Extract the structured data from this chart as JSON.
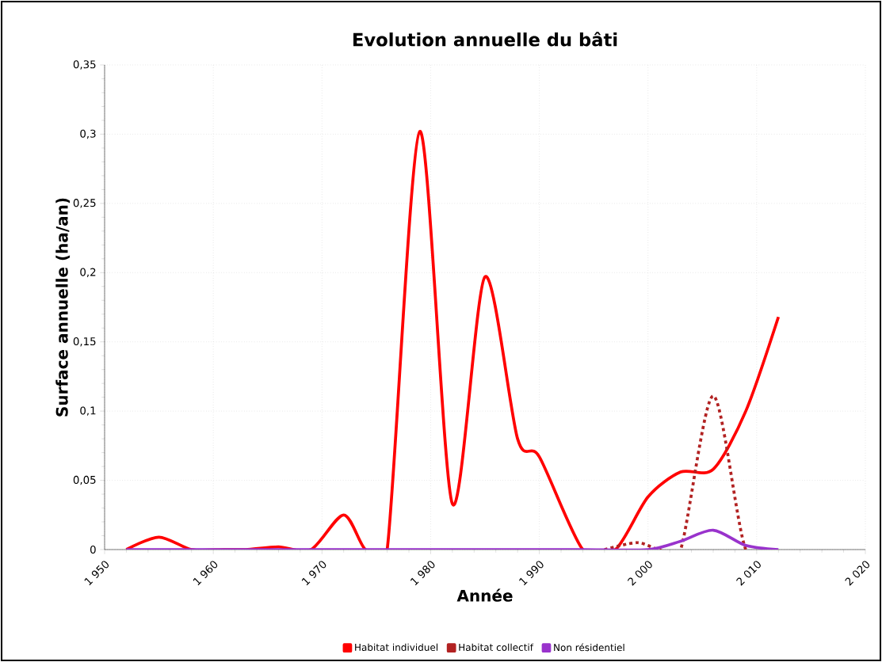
{
  "chart_data": {
    "type": "line",
    "title": "Evolution annuelle du bâti",
    "xlabel": "Année",
    "ylabel": "Surface annuelle (ha/an)",
    "xlim": [
      1950,
      2020
    ],
    "xticks": [
      {
        "value": 1950,
        "label": "1 950"
      },
      {
        "value": 1960,
        "label": "1 960"
      },
      {
        "value": 1970,
        "label": "1 970"
      },
      {
        "value": 1980,
        "label": "1 980"
      },
      {
        "value": 1990,
        "label": "1 990"
      },
      {
        "value": 2000,
        "label": "2 000"
      },
      {
        "value": 2010,
        "label": "2 010"
      },
      {
        "value": 2020,
        "label": "2 020"
      }
    ],
    "ylim": [
      0,
      0.35
    ],
    "yticks": [
      0,
      {
        "value": 0.05,
        "label": "0,05"
      },
      {
        "value": 0.1,
        "label": "0,1"
      },
      {
        "value": 0.15,
        "label": "0,15"
      },
      {
        "value": 0.2,
        "label": "0,2"
      },
      {
        "value": 0.25,
        "label": "0,25"
      },
      {
        "value": 0.3,
        "label": "0,3"
      },
      {
        "value": 0.35,
        "label": "0,35"
      }
    ],
    "grid": true,
    "legend": "bottom",
    "series": [
      {
        "name": "Habitat individuel",
        "color": "#ff0000",
        "line_style": "solid",
        "x": [
          1952,
          1955,
          1958,
          1961,
          1963,
          1966,
          1969,
          1972,
          1974,
          1976,
          1979,
          1982,
          1985,
          1988,
          1990,
          1994,
          1997,
          2000,
          2003,
          2006,
          2009,
          2012
        ],
        "values": [
          0,
          0.009,
          0,
          0,
          0,
          0.002,
          0,
          0.025,
          0,
          0,
          0.302,
          0.033,
          0.197,
          0.08,
          0.067,
          0,
          0,
          0.038,
          0.056,
          0.058,
          0.1,
          0.168
        ]
      },
      {
        "name": "Habitat collectif",
        "color": "#b22222",
        "line_style": "dashed",
        "x": [
          1996,
          1999,
          2001,
          2003,
          2006,
          2009,
          2012
        ],
        "values": [
          0,
          0.005,
          0,
          0,
          0.111,
          0,
          0
        ]
      },
      {
        "name": "Non résidentiel",
        "color": "#9933cc",
        "line_style": "solid",
        "x": [
          1952,
          1961,
          1970,
          1979,
          1988,
          1994,
          2000,
          2003,
          2006,
          2009,
          2012
        ],
        "values": [
          0,
          0,
          0,
          0,
          0,
          0,
          0,
          0.006,
          0.014,
          0.003,
          0
        ]
      }
    ]
  }
}
